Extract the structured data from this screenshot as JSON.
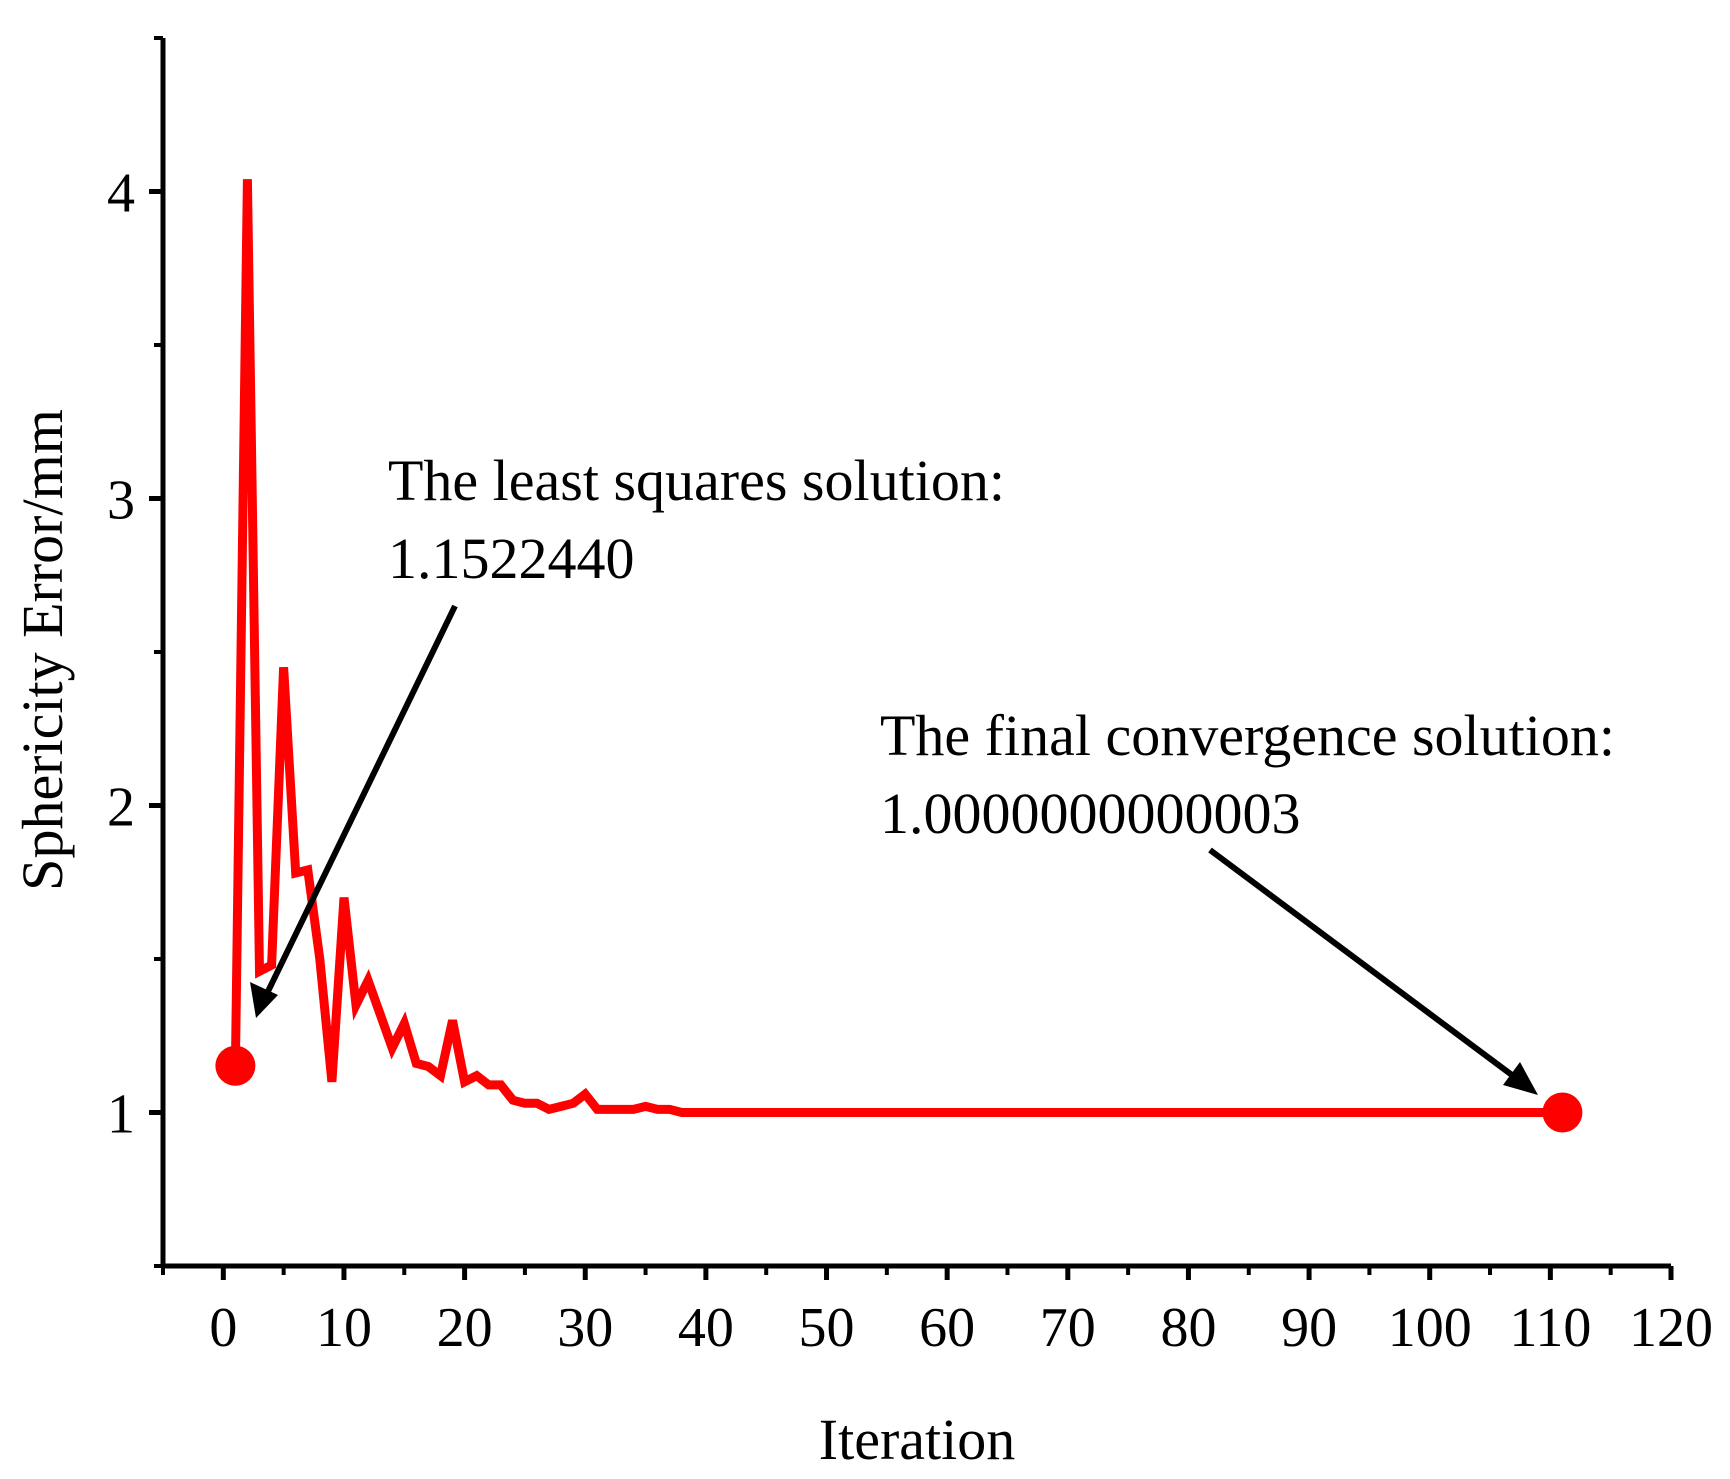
{
  "chart_data": {
    "type": "line",
    "title": "",
    "xlabel": "Iteration",
    "ylabel": "Sphericity Error/mm",
    "xlim": [
      -5,
      120
    ],
    "ylim": [
      0.5,
      4.5
    ],
    "xticks": [
      "0",
      "10",
      "20",
      "30",
      "40",
      "50",
      "60",
      "70",
      "80",
      "90",
      "100",
      "110",
      "120"
    ],
    "yticks": [
      "1",
      "2",
      "3",
      "4"
    ],
    "series": [
      {
        "name": "Sphericity Error",
        "color": "#ff0000",
        "x": [
          1,
          2,
          3,
          4,
          5,
          6,
          7,
          8,
          9,
          10,
          11,
          12,
          13,
          14,
          15,
          16,
          17,
          18,
          19,
          20,
          21,
          22,
          23,
          24,
          25,
          26,
          27,
          28,
          29,
          30,
          31,
          32,
          33,
          34,
          35,
          36,
          37,
          38,
          39,
          40,
          41,
          42,
          43,
          44,
          45,
          50,
          60,
          70,
          80,
          90,
          100,
          111
        ],
        "values": [
          1.152244,
          4.04,
          1.46,
          1.48,
          2.45,
          1.78,
          1.79,
          1.5,
          1.1,
          1.7,
          1.35,
          1.43,
          1.32,
          1.21,
          1.29,
          1.16,
          1.15,
          1.12,
          1.3,
          1.1,
          1.12,
          1.09,
          1.09,
          1.04,
          1.03,
          1.03,
          1.01,
          1.02,
          1.03,
          1.06,
          1.01,
          1.01,
          1.01,
          1.01,
          1.02,
          1.01,
          1.01,
          1.0,
          1.0,
          1.0,
          1.0,
          1.0,
          1.0,
          1.0,
          1.0,
          1.0,
          1.0,
          1.0,
          1.0,
          1.0,
          1.0,
          1.0
        ]
      }
    ],
    "highlight_points": [
      {
        "x": 1,
        "y": 1.152244
      },
      {
        "x": 111,
        "y": 1.0
      }
    ],
    "annotations": [
      {
        "line1": "The least squares solution:",
        "line2": "1.1522440"
      },
      {
        "line1": "The final convergence solution:",
        "line2": "1.0000000000003"
      }
    ]
  }
}
